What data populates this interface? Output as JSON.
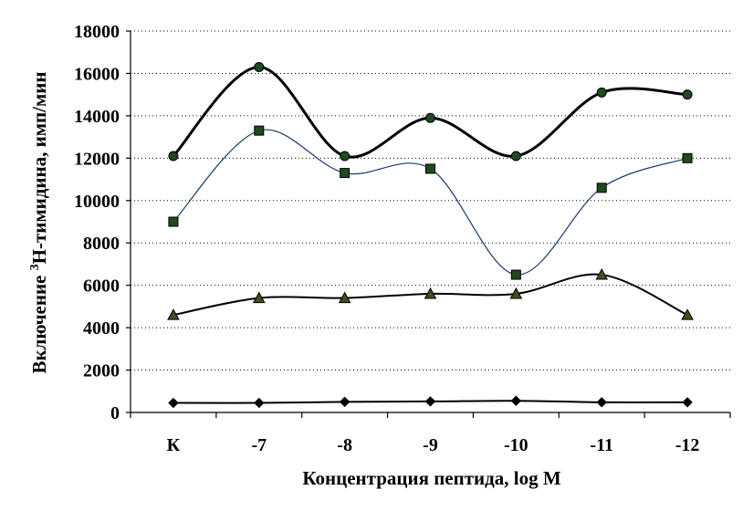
{
  "chart_data": {
    "type": "line",
    "categories": [
      "К",
      "-7",
      "-8",
      "-9",
      "-10",
      "-11",
      "-12"
    ],
    "ylim": [
      0,
      18000
    ],
    "yticks": [
      0,
      2000,
      4000,
      6000,
      8000,
      10000,
      12000,
      14000,
      16000,
      18000
    ],
    "xlabel": "Концентрация пептида, log M",
    "ylabel_prefix": "Включение ",
    "ylabel_sup": "3",
    "ylabel_suffix": "Н-тимидина, имп/мин",
    "grid": "horizontal dotted",
    "legend": "none",
    "smooth": true,
    "series": [
      {
        "marker": "circle",
        "stroke": "#000000",
        "fill": "#1f4a1f",
        "weight": "thick",
        "values": [
          12100,
          16300,
          12100,
          13900,
          12100,
          15100,
          15000
        ]
      },
      {
        "marker": "square",
        "stroke": "#1a3a6a",
        "fill": "#1f4a1f",
        "weight": "thin",
        "values": [
          9000,
          13300,
          11300,
          11500,
          6500,
          10600,
          12000
        ]
      },
      {
        "marker": "triangle",
        "stroke": "#000000",
        "fill": "#3f4f1f",
        "weight": "medium",
        "values": [
          4600,
          5400,
          5400,
          5600,
          5600,
          6500,
          4600
        ]
      },
      {
        "marker": "diamond",
        "stroke": "#000000",
        "fill": "#000000",
        "weight": "medium",
        "values": [
          450,
          450,
          500,
          520,
          550,
          480,
          480
        ]
      }
    ]
  }
}
